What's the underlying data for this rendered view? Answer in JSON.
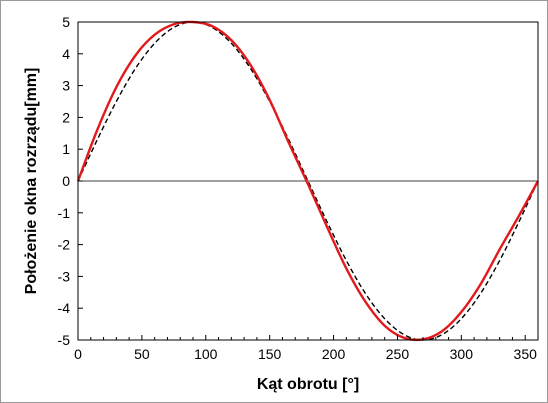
{
  "chart_data": {
    "type": "line",
    "title": "",
    "xlabel": "Kąt obrotu [°]",
    "ylabel": "Położenie okna rozrządu[mm]",
    "xlim": [
      0,
      360
    ],
    "ylim": [
      -5,
      5
    ],
    "x_ticks": [
      "0",
      "50",
      "100",
      "150",
      "200",
      "250",
      "300",
      "350"
    ],
    "y_ticks": [
      "5",
      "4",
      "3",
      "2",
      "1",
      "0",
      "-1",
      "-2",
      "-3",
      "-4",
      "-5"
    ],
    "grid": false,
    "legend": "none",
    "series": [
      {
        "color": "#e31a1c",
        "style": "solid",
        "x": [
          0,
          15,
          30,
          45,
          60,
          75,
          90,
          105,
          120,
          135,
          150,
          165,
          180,
          195,
          210,
          225,
          240,
          255,
          270,
          285,
          300,
          315,
          330,
          345,
          360
        ],
        "y": [
          0,
          1.6,
          2.95,
          3.95,
          4.6,
          4.93,
          5.0,
          4.87,
          4.43,
          3.65,
          2.55,
          1.2,
          -0.1,
          -1.45,
          -2.75,
          -3.8,
          -4.55,
          -4.93,
          -4.98,
          -4.72,
          -4.12,
          -3.25,
          -2.15,
          -1.1,
          0
        ]
      },
      {
        "color": "#000000",
        "style": "dashed",
        "x": [
          0,
          15,
          30,
          45,
          60,
          75,
          90,
          105,
          120,
          135,
          150,
          165,
          180,
          195,
          210,
          225,
          240,
          255,
          270,
          285,
          300,
          315,
          330,
          345,
          360
        ],
        "y": [
          0,
          1.29,
          2.5,
          3.54,
          4.33,
          4.83,
          5.0,
          4.83,
          4.33,
          3.54,
          2.5,
          1.29,
          0,
          -1.29,
          -2.5,
          -3.54,
          -4.33,
          -4.83,
          -5.0,
          -4.83,
          -4.33,
          -3.54,
          -2.5,
          -1.29,
          0
        ]
      }
    ]
  }
}
